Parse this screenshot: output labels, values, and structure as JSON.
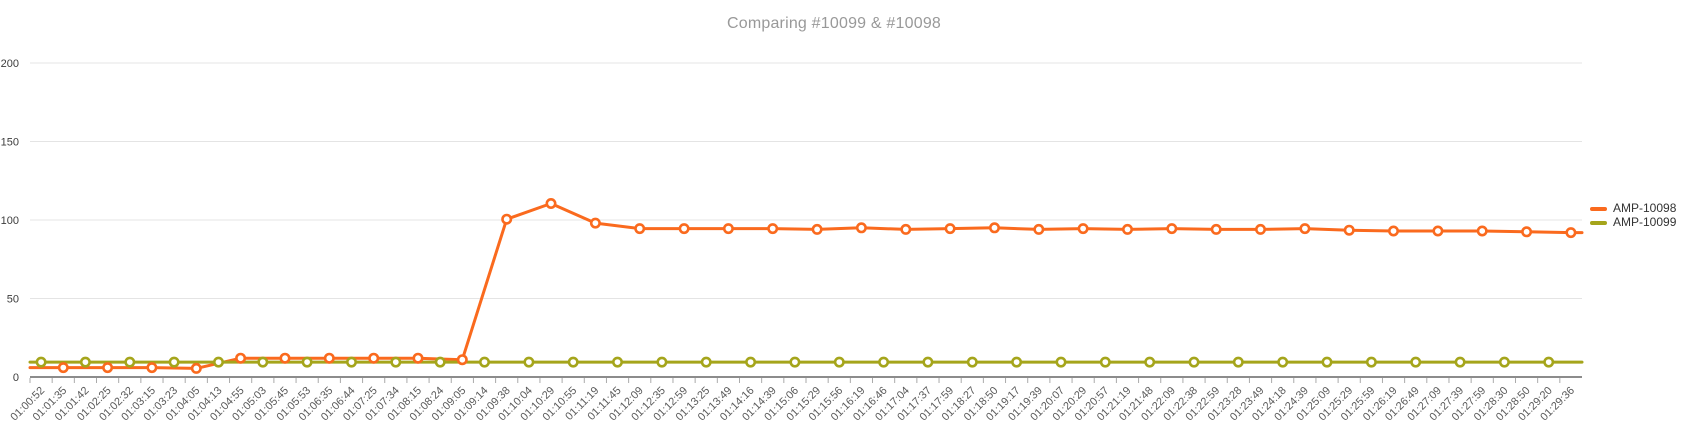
{
  "chart_data": {
    "type": "line",
    "title": "Comparing #10099 & #10098",
    "title_color": "#999999",
    "xlabel": "",
    "ylabel": "",
    "ylim": [
      0,
      200
    ],
    "yticks": [
      0,
      50,
      100,
      150,
      200
    ],
    "grid": true,
    "legend_position": "right",
    "x_categories": [
      "01:00:52",
      "01:01:35",
      "01:01:42",
      "01:02:25",
      "01:02:32",
      "01:03:15",
      "01:03:23",
      "01:04:05",
      "01:04:13",
      "01:04:55",
      "01:05:03",
      "01:05:45",
      "01:05:53",
      "01:06:35",
      "01:06:44",
      "01:07:25",
      "01:07:34",
      "01:08:15",
      "01:08:24",
      "01:09:05",
      "01:09:14",
      "01:09:38",
      "01:10:04",
      "01:10:29",
      "01:10:55",
      "01:11:19",
      "01:11:45",
      "01:12:09",
      "01:12:35",
      "01:12:59",
      "01:13:25",
      "01:13:49",
      "01:14:16",
      "01:14:39",
      "01:15:06",
      "01:15:29",
      "01:15:56",
      "01:16:19",
      "01:16:46",
      "01:17:04",
      "01:17:37",
      "01:17:59",
      "01:18:27",
      "01:18:50",
      "01:19:17",
      "01:19:39",
      "01:20:07",
      "01:20:29",
      "01:20:57",
      "01:21:19",
      "01:21:48",
      "01:22:09",
      "01:22:38",
      "01:22:59",
      "01:23:28",
      "01:23:49",
      "01:24:18",
      "01:24:39",
      "01:25:09",
      "01:25:29",
      "01:25:59",
      "01:26:19",
      "01:26:49",
      "01:27:09",
      "01:27:39",
      "01:27:59",
      "01:28:30",
      "01:28:50",
      "01:29:20",
      "01:29:36"
    ],
    "series": [
      {
        "name": "AMP-10098",
        "color": "#fa6a1e",
        "x": [
          "01:01:35",
          "01:02:25",
          "01:03:15",
          "01:04:05",
          "01:04:55",
          "01:05:45",
          "01:06:35",
          "01:07:25",
          "01:08:15",
          "01:09:05",
          "01:09:38",
          "01:10:29",
          "01:11:19",
          "01:12:09",
          "01:12:59",
          "01:13:49",
          "01:14:39",
          "01:15:29",
          "01:16:19",
          "01:17:04",
          "01:17:59",
          "01:18:50",
          "01:19:39",
          "01:20:29",
          "01:21:19",
          "01:22:09",
          "01:22:59",
          "01:23:49",
          "01:24:39",
          "01:25:29",
          "01:26:19",
          "01:27:09",
          "01:27:59",
          "01:28:50",
          "01:29:36"
        ],
        "values": [
          6,
          6,
          6,
          5.5,
          12,
          12,
          12,
          12,
          12,
          11,
          100.5,
          110.5,
          98,
          94.5,
          94.5,
          94.5,
          94.5,
          94,
          95,
          94,
          94.5,
          95,
          94,
          94.5,
          94,
          94.5,
          94,
          94,
          94.5,
          93.5,
          93,
          93,
          93,
          92.5,
          92
        ]
      },
      {
        "name": "AMP-10099",
        "color": "#a5a51b",
        "x": [
          "01:00:52",
          "01:01:42",
          "01:02:32",
          "01:03:23",
          "01:04:13",
          "01:05:03",
          "01:05:53",
          "01:06:44",
          "01:07:34",
          "01:08:24",
          "01:09:14",
          "01:10:04",
          "01:10:55",
          "01:11:45",
          "01:12:35",
          "01:13:25",
          "01:14:16",
          "01:15:06",
          "01:15:56",
          "01:16:46",
          "01:17:37",
          "01:18:27",
          "01:19:17",
          "01:20:07",
          "01:20:57",
          "01:21:48",
          "01:22:38",
          "01:23:28",
          "01:24:18",
          "01:25:09",
          "01:25:59",
          "01:26:49",
          "01:27:39",
          "01:28:30",
          "01:29:20"
        ],
        "values": [
          9.5,
          9.5,
          9.5,
          9.5,
          9.5,
          9.5,
          9.5,
          9.5,
          9.5,
          9.5,
          9.5,
          9.5,
          9.5,
          9.5,
          9.5,
          9.5,
          9.5,
          9.5,
          9.5,
          9.5,
          9.5,
          9.5,
          9.5,
          9.5,
          9.5,
          9.5,
          9.5,
          9.5,
          9.5,
          9.5,
          9.5,
          9.5,
          9.5,
          9.5,
          9.5
        ]
      }
    ]
  }
}
